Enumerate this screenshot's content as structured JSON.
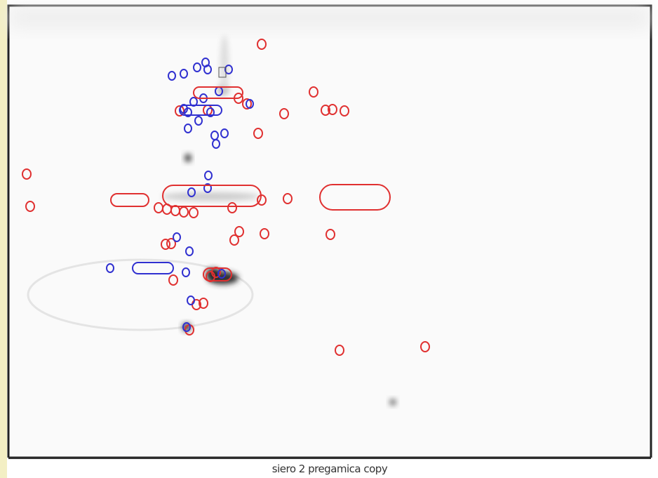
{
  "caption": "siero 2 pregamica copy"
}
